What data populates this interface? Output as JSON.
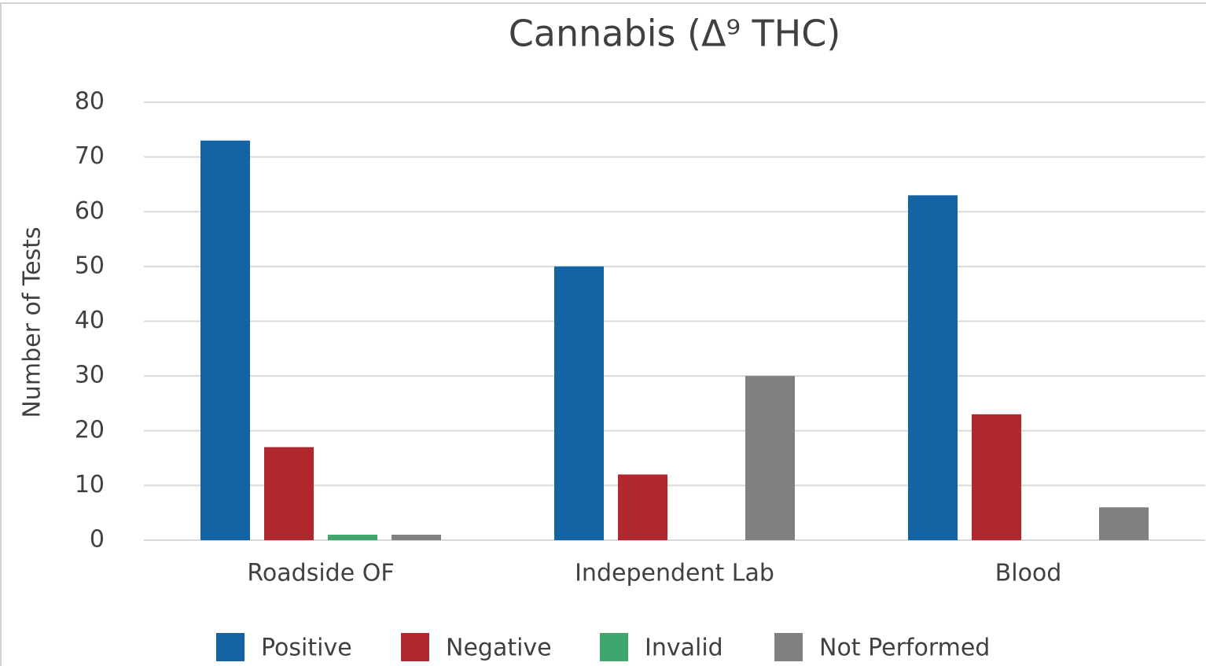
{
  "chart_data": {
    "type": "bar",
    "title": "Cannabis (Δ⁹ THC)",
    "y_label": "Number of Tests",
    "categories": [
      "Roadside OF",
      "Independent Lab",
      "Blood"
    ],
    "series": [
      {
        "name": "Positive",
        "color": "#1464a5",
        "values": [
          73,
          50,
          63
        ]
      },
      {
        "name": "Negative",
        "color": "#b0272d",
        "values": [
          17,
          12,
          23
        ]
      },
      {
        "name": "Invalid",
        "color": "#3fa66d",
        "values": [
          1,
          0,
          0
        ]
      },
      {
        "name": "Not Performed",
        "color": "#808080",
        "values": [
          1,
          30,
          6
        ]
      }
    ],
    "ylim": [
      0,
      80
    ],
    "yticks": [
      0,
      10,
      20,
      30,
      40,
      50,
      60,
      70,
      80
    ],
    "grid": true,
    "legend": "bottom"
  }
}
